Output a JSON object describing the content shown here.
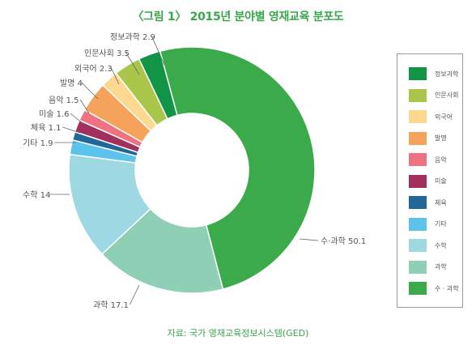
{
  "title": "〈그림 1〉 2015년 분야별 영재교육 분포도",
  "source": "자료: 국가 영재교육정보시스템(GED)",
  "chart_data": {
    "type": "pie",
    "donut": true,
    "slices": [
      {
        "name": "수·과학",
        "legend": "수 · 과학",
        "value": 50.1,
        "label": "수·과학 50.1",
        "color": "#3aaa4a"
      },
      {
        "name": "과학",
        "legend": "과학",
        "value": 17.1,
        "label": "과학 17.1",
        "color": "#8ecfb5"
      },
      {
        "name": "수학",
        "legend": "수학",
        "value": 14,
        "label": "수학 14",
        "color": "#9dd8e3"
      },
      {
        "name": "기타",
        "legend": "기타",
        "value": 1.9,
        "label": "기타 1.9",
        "color": "#5bc3ec"
      },
      {
        "name": "체육",
        "legend": "체육",
        "value": 1.1,
        "label": "체육 1.1",
        "color": "#21679a"
      },
      {
        "name": "미술",
        "legend": "미술",
        "value": 1.6,
        "label": "미술 1.6",
        "color": "#a1305f"
      },
      {
        "name": "음악",
        "legend": "음악",
        "value": 1.5,
        "label": "음악 1.5",
        "color": "#ef7280"
      },
      {
        "name": "발명",
        "legend": "발명",
        "value": 4,
        "label": "발명 4",
        "color": "#f5a35a"
      },
      {
        "name": "외국어",
        "legend": "외국어",
        "value": 2.3,
        "label": "외국어 2.3",
        "color": "#fcd890"
      },
      {
        "name": "인문사회",
        "legend": "인문사회",
        "value": 3.5,
        "label": "인문사회 3.5",
        "color": "#a9c54a"
      },
      {
        "name": "정보과학",
        "legend": "정보과학",
        "value": 2.9,
        "label": "정보과학 2.9",
        "color": "#129447"
      }
    ],
    "legend_order": [
      "정보과학",
      "인문사회",
      "외국어",
      "발명",
      "음악",
      "미술",
      "체육",
      "기타",
      "수학",
      "과학",
      "수·과학"
    ],
    "legend_position": "right"
  }
}
